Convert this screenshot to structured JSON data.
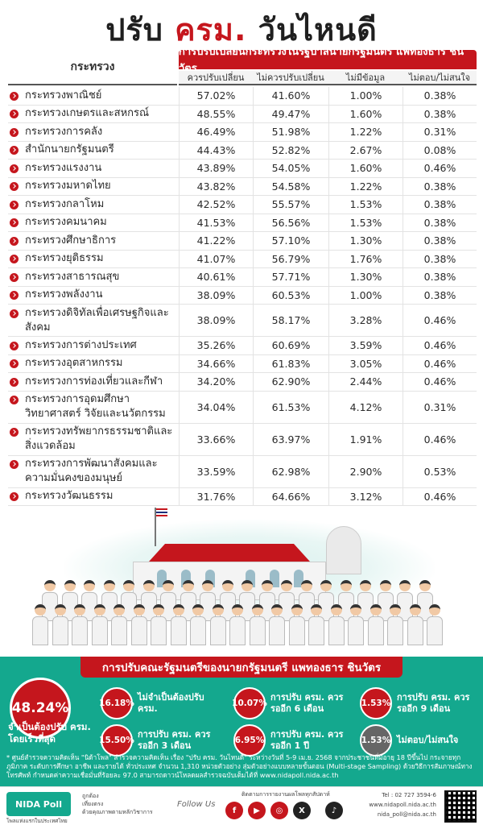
{
  "title": {
    "part1": "ปรับ ",
    "accent": "ครม.",
    "part2": " วันไหนดี"
  },
  "table": {
    "ministry_header": "กระทรวง",
    "group_header": "การปรับเปลี่ยนกระทรวงในรัฐบาลนายกรัฐมนตรี แพทองธาร ชินวัตร",
    "columns": [
      "ควรปรับเปลี่ยน",
      "ไม่ควรปรับเปลี่ยน",
      "ไม่มีข้อมูล",
      "ไม่ตอบ/ไม่สนใจ"
    ],
    "rows": [
      {
        "name": "กระทรวงพาณิชย์",
        "values": [
          "57.02%",
          "41.60%",
          "1.00%",
          "0.38%"
        ]
      },
      {
        "name": "กระทรวงเกษตรและสหกรณ์",
        "values": [
          "48.55%",
          "49.47%",
          "1.60%",
          "0.38%"
        ]
      },
      {
        "name": "กระทรวงการคลัง",
        "values": [
          "46.49%",
          "51.98%",
          "1.22%",
          "0.31%"
        ]
      },
      {
        "name": "สำนักนายกรัฐมนตรี",
        "values": [
          "44.43%",
          "52.82%",
          "2.67%",
          "0.08%"
        ]
      },
      {
        "name": "กระทรวงแรงงาน",
        "values": [
          "43.89%",
          "54.05%",
          "1.60%",
          "0.46%"
        ]
      },
      {
        "name": "กระทรวงมหาดไทย",
        "values": [
          "43.82%",
          "54.58%",
          "1.22%",
          "0.38%"
        ]
      },
      {
        "name": "กระทรวงกลาโหม",
        "values": [
          "42.52%",
          "55.57%",
          "1.53%",
          "0.38%"
        ]
      },
      {
        "name": "กระทรวงคมนาคม",
        "values": [
          "41.53%",
          "56.56%",
          "1.53%",
          "0.38%"
        ]
      },
      {
        "name": "กระทรวงศึกษาธิการ",
        "values": [
          "41.22%",
          "57.10%",
          "1.30%",
          "0.38%"
        ]
      },
      {
        "name": "กระทรวงยุติธรรม",
        "values": [
          "41.07%",
          "56.79%",
          "1.76%",
          "0.38%"
        ]
      },
      {
        "name": "กระทรวงสาธารณสุข",
        "values": [
          "40.61%",
          "57.71%",
          "1.30%",
          "0.38%"
        ]
      },
      {
        "name": "กระทรวงพลังงาน",
        "values": [
          "38.09%",
          "60.53%",
          "1.00%",
          "0.38%"
        ]
      },
      {
        "name": "กระทรวงดิจิทัลเพื่อเศรษฐกิจและสังคม",
        "values": [
          "38.09%",
          "58.17%",
          "3.28%",
          "0.46%"
        ]
      },
      {
        "name": "กระทรวงการต่างประเทศ",
        "values": [
          "35.26%",
          "60.69%",
          "3.59%",
          "0.46%"
        ]
      },
      {
        "name": "กระทรวงอุตสาหกรรม",
        "values": [
          "34.66%",
          "61.83%",
          "3.05%",
          "0.46%"
        ]
      },
      {
        "name": "กระทรวงการท่องเที่ยวและกีฬา",
        "values": [
          "34.20%",
          "62.90%",
          "2.44%",
          "0.46%"
        ]
      },
      {
        "name": "กระทรวงการอุดมศึกษา วิทยาศาสตร์ วิจัยและนวัตกรรม",
        "values": [
          "34.04%",
          "61.53%",
          "4.12%",
          "0.31%"
        ]
      },
      {
        "name": "กระทรวงทรัพยากรธรรมชาติและสิ่งแวดล้อม",
        "values": [
          "33.66%",
          "63.97%",
          "1.91%",
          "0.46%"
        ]
      },
      {
        "name": "กระทรวงการพัฒนาสังคมและความมั่นคงของมนุษย์",
        "values": [
          "33.59%",
          "62.98%",
          "2.90%",
          "0.53%"
        ]
      },
      {
        "name": "กระทรวงวัฒนธรรม",
        "values": [
          "31.76%",
          "64.66%",
          "3.12%",
          "0.46%"
        ]
      }
    ]
  },
  "summary": {
    "banner": "การปรับคณะรัฐมนตรีของนายกรัฐมนตรี แพทองธาร ชินวัตร",
    "main_pct": "48.24%",
    "main_label": "จำเป็นต้องปรับ ครม. โดยเร็วที่สุด",
    "stats": [
      {
        "pct": "16.18%",
        "label": "ไม่จำเป็นต้องปรับ ครม."
      },
      {
        "pct": "10.07%",
        "label": "การปรับ ครม. ควรรออีก 6 เดือน"
      },
      {
        "pct": "1.53%",
        "label": "การปรับ ครม. ควรรออีก 9 เดือน"
      },
      {
        "pct": "15.50%",
        "label": "การปรับ ครม. ควรรออีก 3 เดือน"
      },
      {
        "pct": "6.95%",
        "label": "การปรับ ครม. ควรรออีก 1 ปี"
      },
      {
        "pct": "1.53%",
        "label": "ไม่ตอบ/ไม่สนใจ"
      }
    ],
    "footnote": "* ศูนย์สำรวจความคิดเห็น \"นิด้าโพล\" สำรวจความคิดเห็น เรื่อง \"ปรับ ครม. วันไหนดี\" ระหว่างวันที่ 5-9 เม.ย. 2568 จากประชาชนที่มีอายุ 18 ปีขึ้นไป กระจายทุกภูมิภาค ระดับการศึกษา อาชีพ และรายได้ ทั่วประเทศ จำนวน 1,310 หน่วยตัวอย่าง สุ่มตัวอย่างแบบหลายขั้นตอน (Multi-stage Sampling) ด้วยวิธีการสัมภาษณ์ทางโทรศัพท์ กำหนดค่าความเชื่อมั่นที่ร้อยละ 97.0 สามารถดาวน์โหลดผลสำรวจฉบับเต็มได้ที่ www.nidapoll.nida.ac.th"
  },
  "footer": {
    "logo": "NIDA Poll",
    "logo_sub": "โพลแห่งแรกในประเทศไทย",
    "lines": [
      "ถูกต้อง",
      "เที่ยงตรง",
      "ด้วยคุณภาพตามหลักวิชาการ"
    ],
    "follow": "Follow Us",
    "follow_top": "ติดตามการรายงานผลโพลทุกสัปดาห์",
    "social": [
      "f",
      "▶",
      "◎",
      "X",
      "♪"
    ],
    "tel": "Tel : 02 727 3594-6",
    "web": "www.nidapoll.nida.ac.th",
    "email": "nida_poll@nida.ac.th"
  }
}
